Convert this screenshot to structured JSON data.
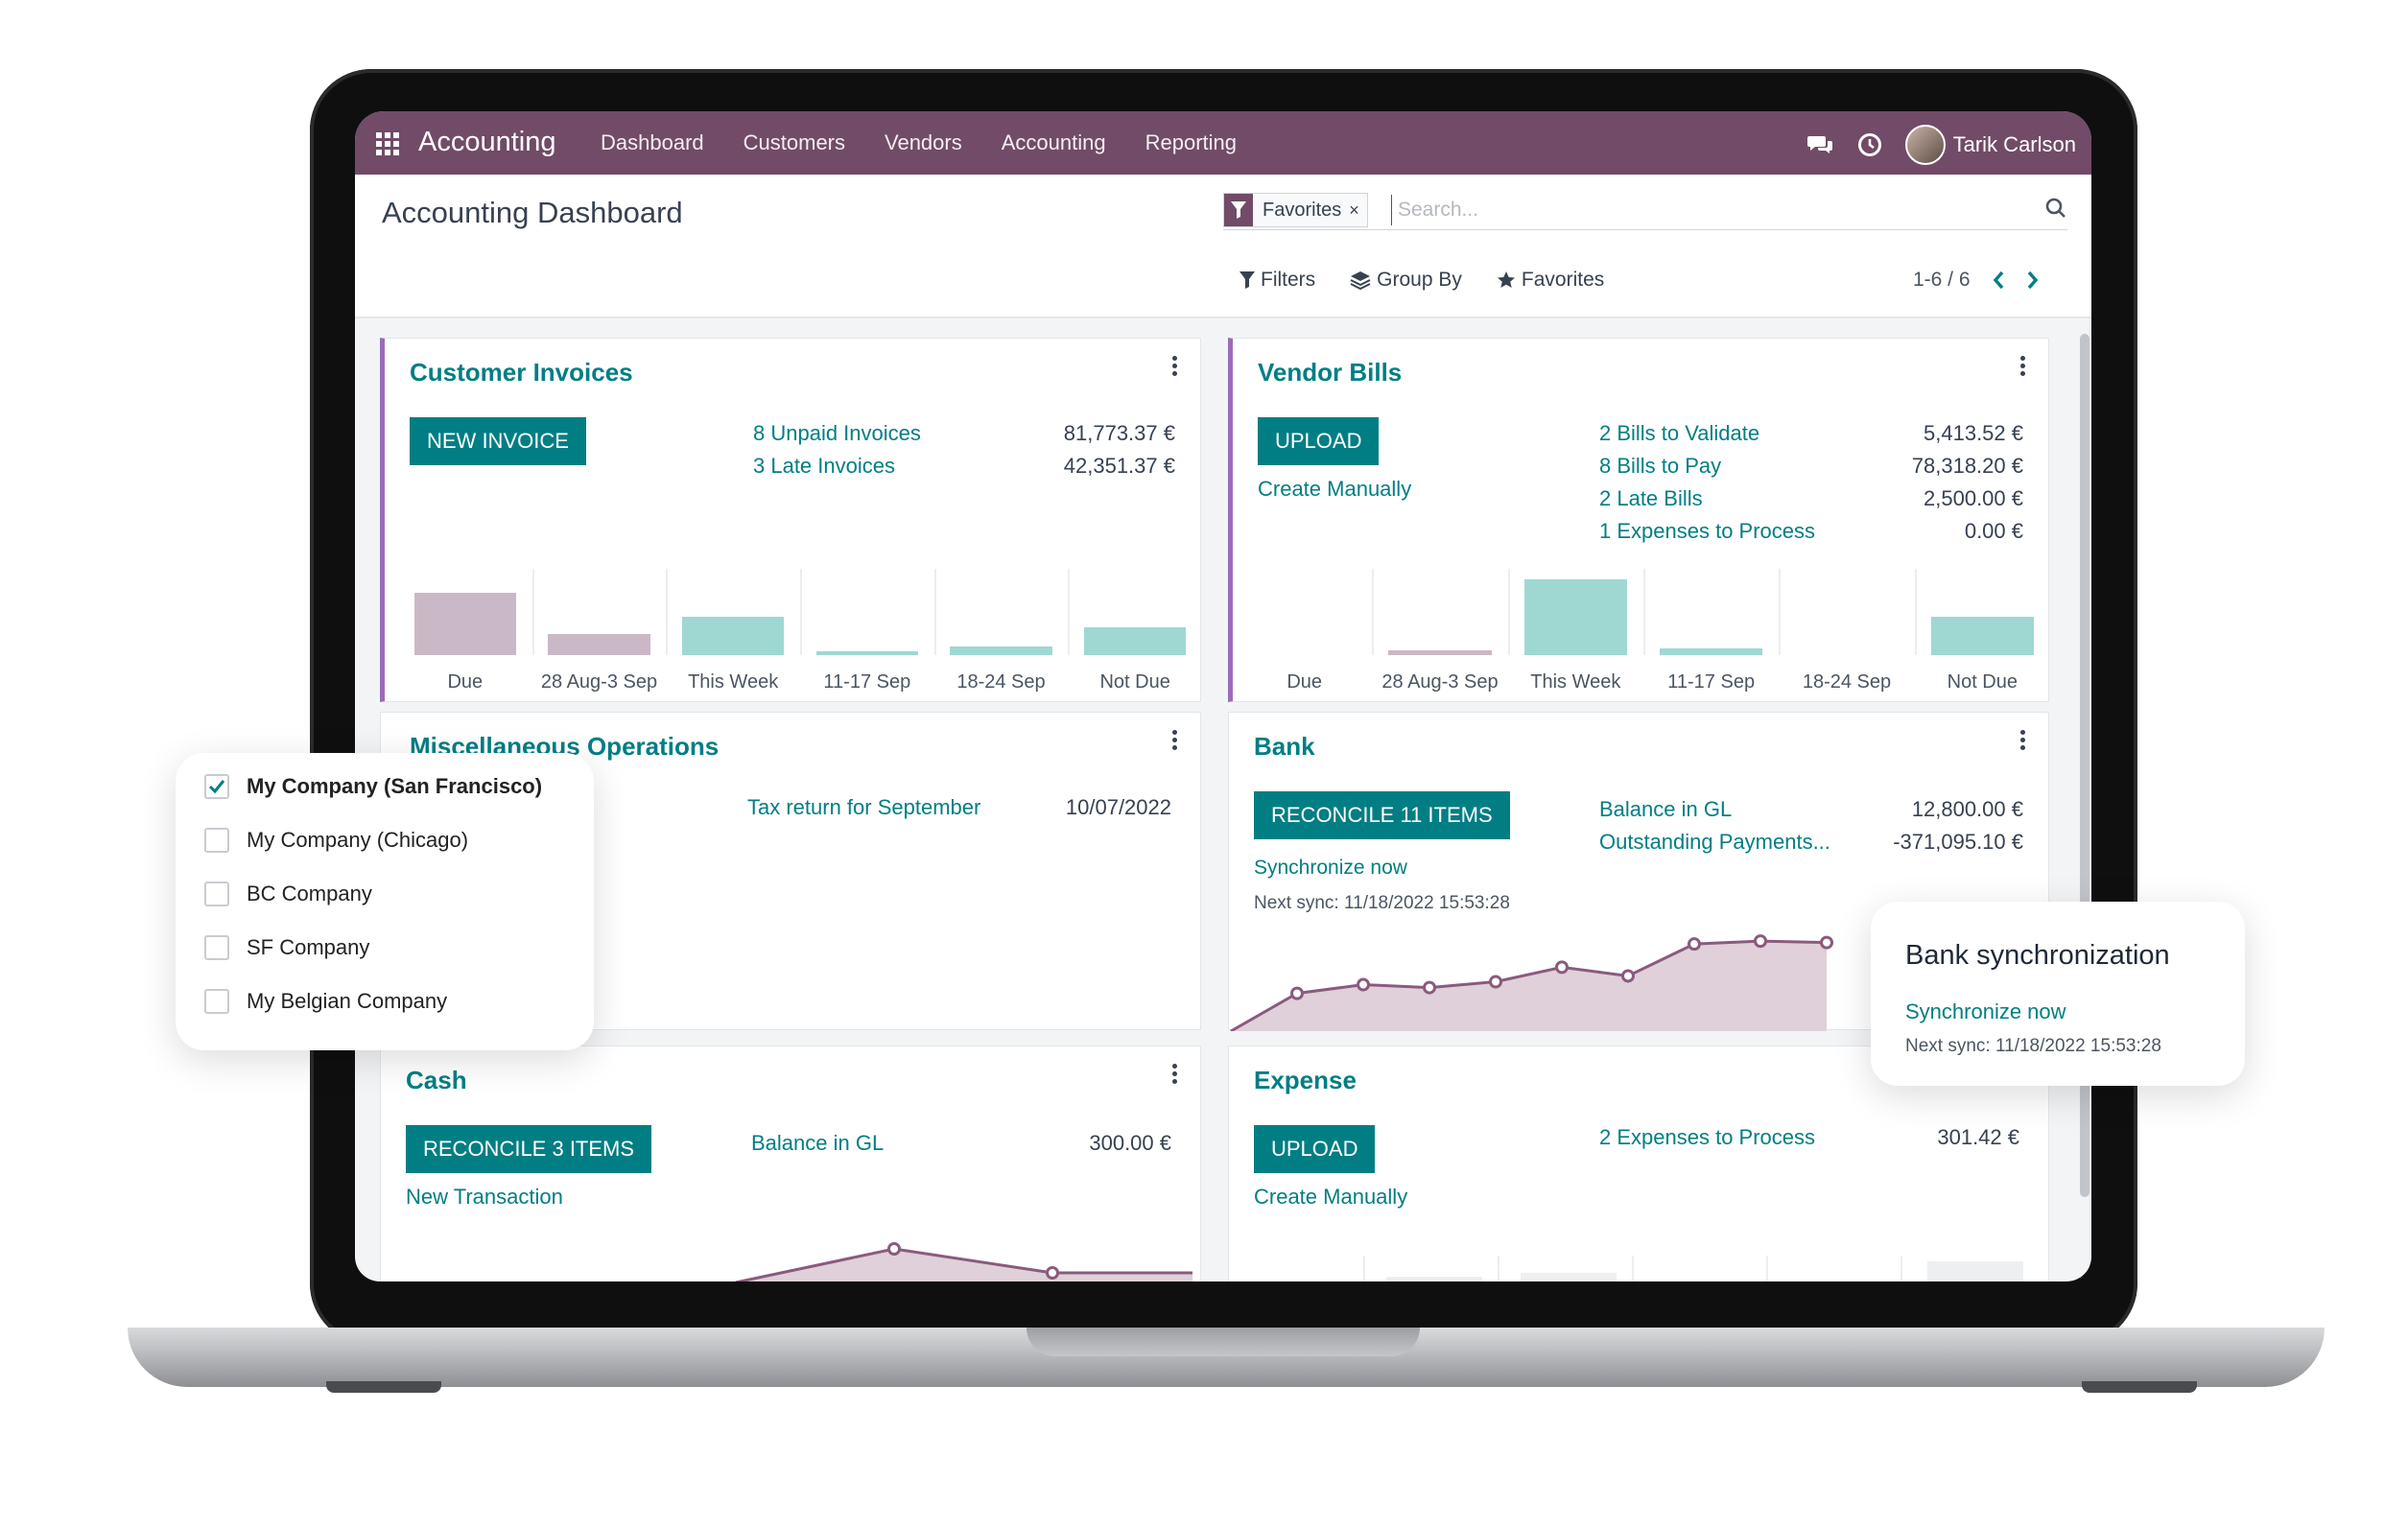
{
  "navbar": {
    "app_title": "Accounting",
    "menu": [
      "Dashboard",
      "Customers",
      "Vendors",
      "Accounting",
      "Reporting"
    ],
    "user_name": "Tarik Carlson",
    "icons": [
      "apps-grid-icon",
      "chat-icon",
      "clock-icon"
    ]
  },
  "control_panel": {
    "title": "Accounting Dashboard",
    "search": {
      "facet_label": "Favorites",
      "facet_close": "×",
      "placeholder": "Search..."
    },
    "filters_label": "Filters",
    "group_by_label": "Group By",
    "favorites_label": "Favorites",
    "pager": "1-6 / 6"
  },
  "customer_invoices": {
    "title": "Customer Invoices",
    "button": "NEW INVOICE",
    "rows": [
      {
        "label": "8 Unpaid Invoices",
        "amount": "81,773.37 €"
      },
      {
        "label": "3 Late Invoices",
        "amount": "42,351.37 €"
      }
    ],
    "chart_data": {
      "type": "bar",
      "categories": [
        "Due",
        "28 Aug-3 Sep",
        "This Week",
        "11-17 Sep",
        "18-24 Sep",
        "Not Due"
      ],
      "values": [
        36,
        12,
        22,
        2,
        5,
        16
      ],
      "colors": [
        "#cbb8c6",
        "#cbb8c6",
        "#9fd8d3",
        "#9fd8d3",
        "#9fd8d3",
        "#9fd8d3"
      ]
    }
  },
  "vendor_bills": {
    "title": "Vendor Bills",
    "button": "UPLOAD",
    "secondary_link": "Create Manually",
    "rows": [
      {
        "label": "2 Bills to Validate",
        "amount": "5,413.52 €"
      },
      {
        "label": "8 Bills to Pay",
        "amount": "78,318.20 €"
      },
      {
        "label": "2 Late Bills",
        "amount": "2,500.00 €"
      },
      {
        "label": "1 Expenses to Process",
        "amount": "0.00 €"
      }
    ],
    "chart_data": {
      "type": "bar",
      "categories": [
        "Due",
        "28 Aug-3 Sep",
        "This Week",
        "11-17 Sep",
        "18-24 Sep",
        "Not Due"
      ],
      "values": [
        0,
        3,
        44,
        4,
        0,
        22
      ],
      "colors": [
        "#cbb8c6",
        "#cbb8c6",
        "#9fd8d3",
        "#9fd8d3",
        "#9fd8d3",
        "#9fd8d3"
      ]
    }
  },
  "misc_operations": {
    "title": "Miscellaneous Operations",
    "link": "Tax return for September",
    "date": "10/07/2022"
  },
  "bank": {
    "title": "Bank",
    "button": "RECONCILE 11 ITEMS",
    "sync_link": "Synchronize now",
    "next_sync": "Next sync: 11/18/2022 15:53:28",
    "rows": [
      {
        "label": "Balance in GL",
        "amount": "12,800.00 €"
      },
      {
        "label": "Outstanding Payments...",
        "amount": "-371,095.10 €"
      }
    ],
    "chart_data": {
      "type": "area",
      "values": [
        0,
        26,
        32,
        30,
        34,
        44,
        38,
        60,
        62,
        61
      ],
      "ylim": [
        0,
        70
      ],
      "color": "#8b5a7d"
    }
  },
  "cash": {
    "title": "Cash",
    "button": "RECONCILE 3 ITEMS",
    "secondary_link": "New Transaction",
    "rows": [
      {
        "label": "Balance in GL",
        "amount": "300.00 €"
      }
    ],
    "chart_data": {
      "type": "area",
      "values": [
        0,
        28,
        8,
        8
      ],
      "ylim": [
        0,
        40
      ],
      "color": "#8b5a7d"
    }
  },
  "expense": {
    "title": "Expense",
    "button": "UPLOAD",
    "secondary_link": "Create Manually",
    "rows": [
      {
        "label": "2 Expenses to Process",
        "amount": "301.42 €"
      }
    ]
  },
  "company_switcher": {
    "companies": [
      {
        "name": "My Company (San Francisco)",
        "checked": true
      },
      {
        "name": "My Company (Chicago)",
        "checked": false
      },
      {
        "name": "BC Company",
        "checked": false
      },
      {
        "name": "SF Company",
        "checked": false
      },
      {
        "name": "My Belgian Company",
        "checked": false
      }
    ]
  },
  "sync_popup": {
    "title": "Bank synchronization",
    "link": "Synchronize now",
    "next_sync": "Next sync: 11/18/2022 15:53:28"
  }
}
